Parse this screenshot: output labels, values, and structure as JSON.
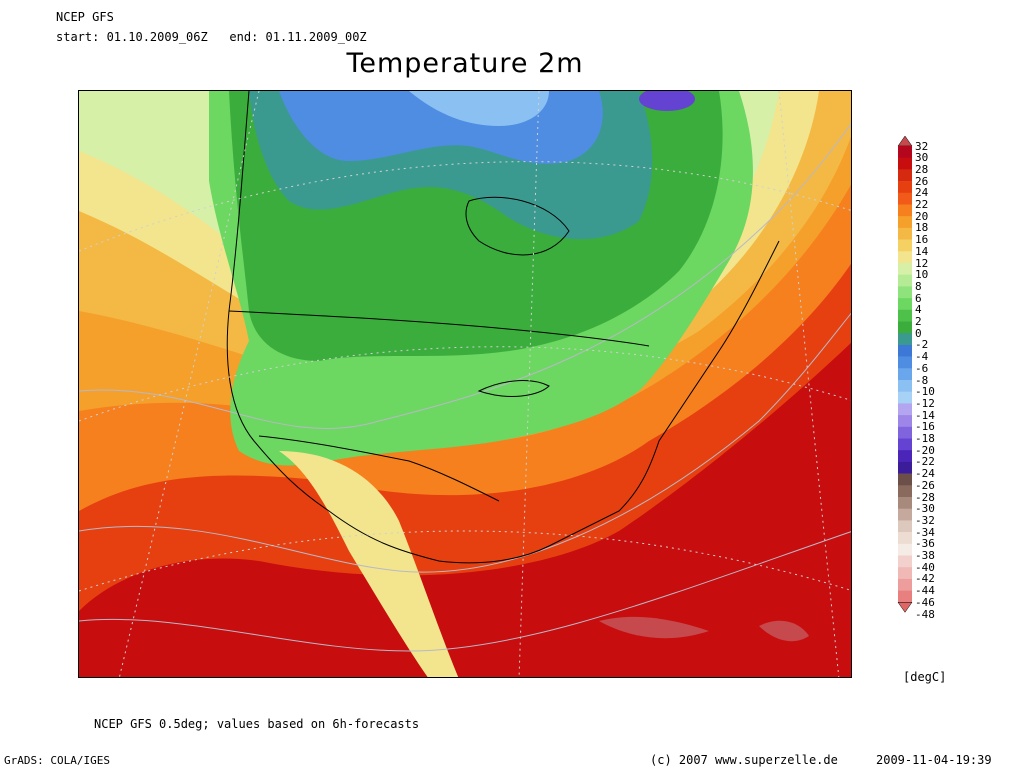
{
  "header": {
    "model": "NCEP GFS",
    "period": "start: 01.10.2009_06Z   end: 01.11.2009_00Z"
  },
  "title": "Temperature 2m",
  "legend": {
    "unit": "[degC]",
    "levels": [
      "32",
      "30",
      "28",
      "26",
      "24",
      "22",
      "20",
      "18",
      "16",
      "14",
      "12",
      "10",
      "8",
      "6",
      "4",
      "2",
      "0",
      "-2",
      "-4",
      "-6",
      "-8",
      "-10",
      "-12",
      "-14",
      "-16",
      "-18",
      "-20",
      "-22",
      "-24",
      "-26",
      "-28",
      "-30",
      "-32",
      "-34",
      "-36",
      "-38",
      "-40",
      "-42",
      "-44",
      "-46",
      "-48"
    ],
    "colors": [
      "#c5494d",
      "#b4061d",
      "#c80d0e",
      "#d62a10",
      "#e64011",
      "#f25a1a",
      "#f6801e",
      "#f5a02b",
      "#f4b945",
      "#f5d063",
      "#f2e58d",
      "#d6f0a8",
      "#b6eb96",
      "#8ee37d",
      "#6cd761",
      "#4ec14b",
      "#3aad3d",
      "#3b9a8f",
      "#3d78d6",
      "#4f8de3",
      "#6aa6ec",
      "#8bc0f2",
      "#a7d2f5",
      "#b3a5f0",
      "#9d86e8",
      "#8064de",
      "#6443d2",
      "#4b25b8",
      "#3b1d9a",
      "#6c4f49",
      "#8a6a5c",
      "#a88a7c",
      "#c4a99c",
      "#dcc8bc",
      "#ecdcd2",
      "#f6ece6",
      "#f2d1cd",
      "#f0b9b6",
      "#ec9d9c",
      "#e7807f",
      "#e06565"
    ]
  },
  "footer": {
    "note": "NCEP GFS 0.5deg; values based on 6h-forecasts",
    "software": "GrADS: COLA/IGES",
    "copyright": "(c) 2007 www.superzelle.de",
    "timestamp": "2009-11-04-19:39"
  }
}
